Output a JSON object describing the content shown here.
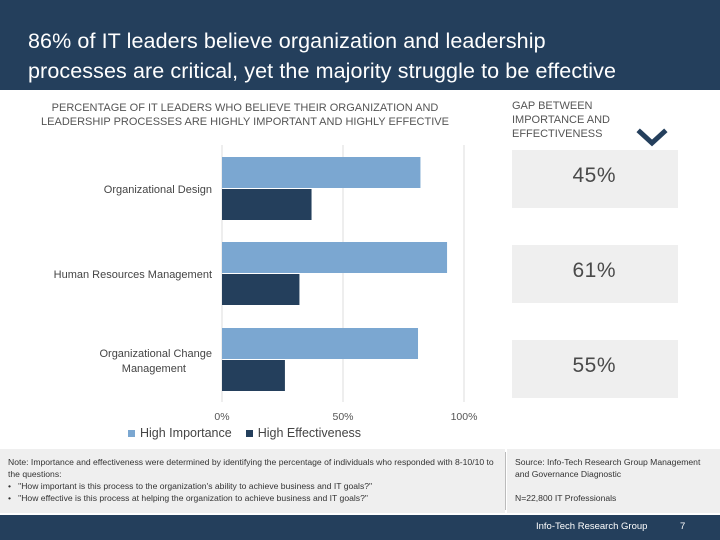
{
  "slide": {
    "title_line1": "86% of IT leaders believe organization and leadership",
    "title_line2": "processes are critical, yet the majority struggle to be effective"
  },
  "chart_data": {
    "type": "bar",
    "orientation": "horizontal",
    "title": "PERCENTAGE OF IT LEADERS WHO BELIEVE THEIR ORGANIZATION AND LEADERSHIP PROCESSES ARE HIGHLY IMPORTANT AND HIGHLY EFFECTIVE",
    "categories": [
      "Organizational Design",
      "Human Resources Management",
      "Organizational Change Management"
    ],
    "series": [
      {
        "name": "High Importance",
        "color": "#7ba7d1",
        "values": [
          82,
          93,
          81
        ]
      },
      {
        "name": "High Effectiveness",
        "color": "#243f5c",
        "values": [
          37,
          32,
          26
        ]
      }
    ],
    "xlim": [
      0,
      100
    ],
    "xticks": [
      "0%",
      "50%",
      "100%"
    ],
    "xtick_values": [
      0,
      50,
      100
    ],
    "legend_position": "bottom-left"
  },
  "gap": {
    "title": "GAP BETWEEN IMPORTANCE AND EFFECTIVENESS",
    "icon": "check-icon",
    "values": [
      "45%",
      "61%",
      "55%"
    ]
  },
  "note": {
    "text": "Note: Importance and effectiveness were determined by identifying the percentage of individuals who responded with 8-10/10 to the questions:",
    "bullet1": "\"How important is this process to the organization's ability to achieve business and IT goals?\"",
    "bullet2": "\"How effective is this process at helping the organization to achieve business and IT goals?\""
  },
  "source": {
    "text": "Source: Info-Tech Research Group Management and Governance Diagnostic",
    "n": "N=22,800 IT Professionals"
  },
  "footer": {
    "org": "Info-Tech Research Group",
    "page": "7"
  },
  "colors": {
    "title_bg": "#243f5c",
    "importance": "#7ba7d1",
    "effectiveness": "#243f5c",
    "panel_bg": "#efefef"
  }
}
